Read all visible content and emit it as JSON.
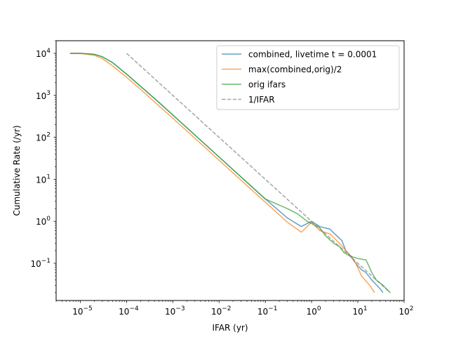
{
  "chart_data": {
    "type": "line",
    "title": "",
    "xlabel": "IFAR (yr)",
    "ylabel": "Cumulative Rate (/yr)",
    "xscale": "log",
    "yscale": "log",
    "xlim": [
      3e-06,
      100
    ],
    "ylim": [
      0.013,
      20000
    ],
    "grid": false,
    "legend_position": "top-right",
    "x_ticks": [
      {
        "value": 1e-05,
        "base": "10",
        "exp": "−5"
      },
      {
        "value": 0.0001,
        "base": "10",
        "exp": "−4"
      },
      {
        "value": 0.001,
        "base": "10",
        "exp": "−3"
      },
      {
        "value": 0.01,
        "base": "10",
        "exp": "−2"
      },
      {
        "value": 0.1,
        "base": "10",
        "exp": "−1"
      },
      {
        "value": 1,
        "base": "10",
        "exp": "0"
      },
      {
        "value": 10,
        "base": "10",
        "exp": "1"
      },
      {
        "value": 100,
        "base": "10",
        "exp": "2"
      }
    ],
    "y_ticks": [
      {
        "value": 0.1,
        "base": "10",
        "exp": "−1"
      },
      {
        "value": 1,
        "base": "10",
        "exp": "0"
      },
      {
        "value": 10,
        "base": "10",
        "exp": "1"
      },
      {
        "value": 100,
        "base": "10",
        "exp": "2"
      },
      {
        "value": 1000,
        "base": "10",
        "exp": "3"
      },
      {
        "value": 10000,
        "base": "10",
        "exp": "4"
      }
    ],
    "series": [
      {
        "name": "combined, livetime t = 0.0001",
        "color": "#1f77b4",
        "dash": "solid",
        "points": [
          [
            6e-06,
            10000
          ],
          [
            1e-05,
            10000
          ],
          [
            2e-05,
            9500
          ],
          [
            3e-05,
            8300
          ],
          [
            5e-05,
            6000
          ],
          [
            0.0001,
            3200
          ],
          [
            0.0002,
            1650
          ],
          [
            0.0005,
            680
          ],
          [
            0.001,
            340
          ],
          [
            0.01,
            34
          ],
          [
            0.1,
            3.4
          ],
          [
            0.3,
            1.2
          ],
          [
            0.6,
            0.75
          ],
          [
            1.0,
            1.0
          ],
          [
            1.5,
            0.75
          ],
          [
            2.5,
            0.65
          ],
          [
            3.5,
            0.45
          ],
          [
            4.5,
            0.35
          ],
          [
            5.5,
            0.2
          ],
          [
            7,
            0.15
          ],
          [
            9,
            0.1
          ],
          [
            12,
            0.07
          ],
          [
            15,
            0.06
          ],
          [
            20,
            0.04
          ],
          [
            30,
            0.025
          ],
          [
            35,
            0.02
          ]
        ]
      },
      {
        "name": "max(combined,orig)/2",
        "color": "#ff7f0e",
        "dash": "solid",
        "points": [
          [
            6e-06,
            10000
          ],
          [
            1e-05,
            10000
          ],
          [
            2e-05,
            9000
          ],
          [
            3e-05,
            7500
          ],
          [
            5e-05,
            5000
          ],
          [
            0.0001,
            2700
          ],
          [
            0.0002,
            1400
          ],
          [
            0.0005,
            560
          ],
          [
            0.001,
            285
          ],
          [
            0.01,
            28.5
          ],
          [
            0.1,
            2.85
          ],
          [
            0.3,
            0.95
          ],
          [
            0.6,
            0.55
          ],
          [
            1.0,
            0.95
          ],
          [
            1.5,
            0.6
          ],
          [
            2.5,
            0.5
          ],
          [
            4,
            0.3
          ],
          [
            6,
            0.18
          ],
          [
            9,
            0.1
          ],
          [
            12,
            0.05
          ],
          [
            18,
            0.03
          ],
          [
            23,
            0.02
          ]
        ]
      },
      {
        "name": "orig ifars",
        "color": "#2ca02c",
        "dash": "solid",
        "points": [
          [
            6e-06,
            10000
          ],
          [
            1e-05,
            10000
          ],
          [
            2e-05,
            9500
          ],
          [
            3e-05,
            8300
          ],
          [
            5e-05,
            6000
          ],
          [
            0.0001,
            3200
          ],
          [
            0.0002,
            1650
          ],
          [
            0.0005,
            680
          ],
          [
            0.001,
            340
          ],
          [
            0.01,
            34
          ],
          [
            0.1,
            3.4
          ],
          [
            0.3,
            2.0
          ],
          [
            0.5,
            1.5
          ],
          [
            0.8,
            1.0
          ],
          [
            1.5,
            0.7
          ],
          [
            2,
            0.45
          ],
          [
            3,
            0.3
          ],
          [
            4,
            0.25
          ],
          [
            5,
            0.18
          ],
          [
            6,
            0.16
          ],
          [
            8,
            0.14
          ],
          [
            10,
            0.13
          ],
          [
            15,
            0.12
          ],
          [
            17,
            0.09
          ],
          [
            20,
            0.06
          ],
          [
            25,
            0.04
          ],
          [
            35,
            0.03
          ],
          [
            50,
            0.02
          ]
        ]
      },
      {
        "name": "1/IFAR",
        "color": "#7f7f7f",
        "dash": "dashed",
        "points": [
          [
            0.0001,
            10000
          ],
          [
            50,
            0.02
          ]
        ]
      }
    ]
  }
}
